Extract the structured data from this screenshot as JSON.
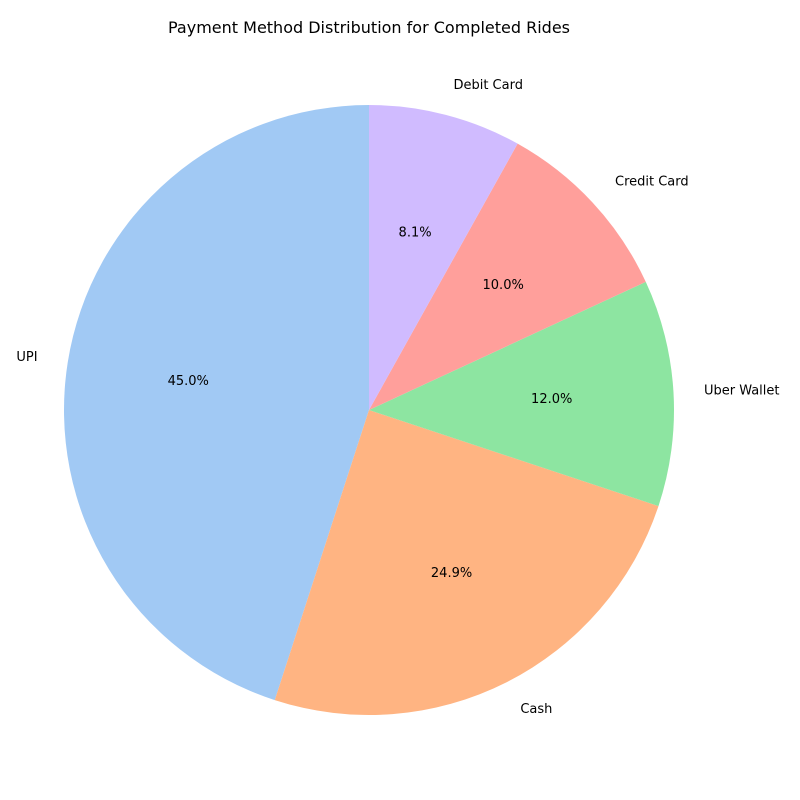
{
  "chart_data": {
    "type": "pie",
    "title": "Payment Method Distribution for Completed Rides",
    "categories": [
      "UPI",
      "Cash",
      "Uber Wallet",
      "Credit Card",
      "Debit Card"
    ],
    "values": [
      45.0,
      24.9,
      12.0,
      10.0,
      8.1
    ],
    "value_labels": [
      "45.0%",
      "24.9%",
      "12.0%",
      "10.0%",
      "8.1%"
    ],
    "colors": [
      "#a1c9f4",
      "#ffb482",
      "#8de5a1",
      "#ff9f9b",
      "#d0bbff"
    ],
    "start_angle_deg": 90,
    "direction": "counterclockwise",
    "legend": "none"
  }
}
